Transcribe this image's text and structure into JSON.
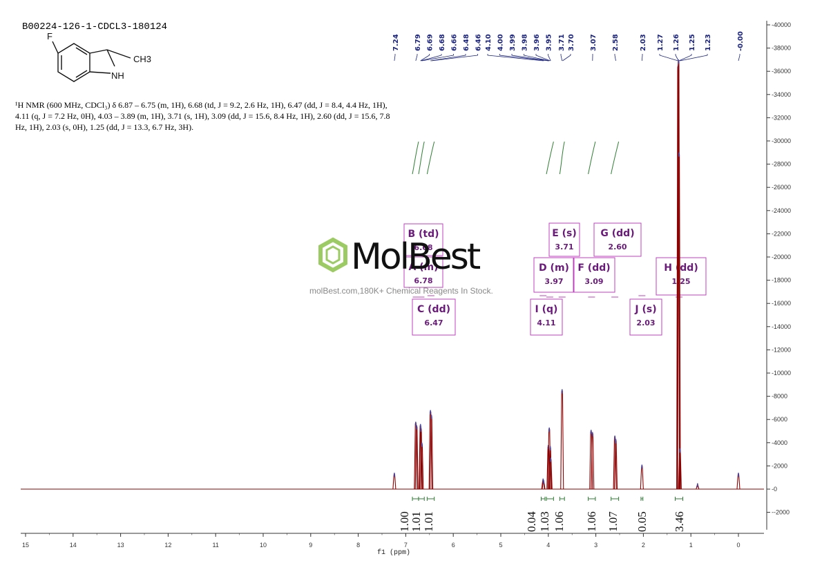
{
  "sample_id": "B00224-126-1-CDCL3-180124",
  "caption": "¹H NMR (600 MHz, CDCl₃) δ 6.87 – 6.75 (m, 1H), 6.68 (td, J = 9.2, 2.6 Hz, 1H), 6.47 (dd, J = 8.4, 4.4 Hz, 1H), 4.11 (q, J = 7.2 Hz, 0H), 4.03 – 3.89 (m, 1H), 3.71 (s, 1H), 3.09 (dd, J = 15.6, 8.4 Hz, 1H), 2.60 (dd, J = 15.6, 7.8 Hz, 1H), 2.03 (s, 0H), 1.25 (dd, J = 13.3, 6.7 Hz, 3H).",
  "molecule": {
    "f_label": "F",
    "nh_label": "NH",
    "ch3_label": "CH3"
  },
  "watermark": {
    "name": "MolBest",
    "url": "molBest.com,180K+ Chemical Reagents In Stock."
  },
  "colors": {
    "spectrum": "#8b0000",
    "integral": "#2e7d32",
    "multiplet": "#c040c0",
    "shift_labels": "#1a237e"
  },
  "chart_data": {
    "type": "line",
    "xlabel": "f1 (ppm)",
    "xlim": [
      15.2,
      -0.5
    ],
    "x_reversed": true,
    "x_ticks": [
      15,
      14,
      13,
      12,
      11,
      10,
      9,
      8,
      7,
      6,
      5,
      4,
      3,
      2,
      1,
      0
    ],
    "ylim": [
      -3500,
      40500
    ],
    "y_axis_side": "right",
    "y_ticks": [
      -2000,
      0,
      2000,
      4000,
      6000,
      8000,
      10000,
      12000,
      14000,
      16000,
      18000,
      20000,
      22000,
      24000,
      26000,
      28000,
      30000,
      32000,
      34000,
      36000,
      38000,
      40000
    ],
    "peaks": [
      {
        "ppm": 7.24,
        "intensity": 1400
      },
      {
        "ppm": 6.79,
        "intensity": 5800
      },
      {
        "ppm": 6.77,
        "intensity": 5500
      },
      {
        "ppm": 6.69,
        "intensity": 5600
      },
      {
        "ppm": 6.68,
        "intensity": 5300
      },
      {
        "ppm": 6.66,
        "intensity": 4000
      },
      {
        "ppm": 6.48,
        "intensity": 6800
      },
      {
        "ppm": 6.46,
        "intensity": 6400
      },
      {
        "ppm": 4.11,
        "intensity": 900
      },
      {
        "ppm": 4.1,
        "intensity": 800
      },
      {
        "ppm": 4.0,
        "intensity": 3800
      },
      {
        "ppm": 3.98,
        "intensity": 5300
      },
      {
        "ppm": 3.96,
        "intensity": 3700
      },
      {
        "ppm": 3.95,
        "intensity": 2700
      },
      {
        "ppm": 3.71,
        "intensity": 8600
      },
      {
        "ppm": 3.1,
        "intensity": 5100
      },
      {
        "ppm": 3.07,
        "intensity": 4900
      },
      {
        "ppm": 2.6,
        "intensity": 4600
      },
      {
        "ppm": 2.58,
        "intensity": 4300
      },
      {
        "ppm": 2.03,
        "intensity": 2100
      },
      {
        "ppm": 1.27,
        "intensity": 36500
      },
      {
        "ppm": 1.26,
        "intensity": 37000
      },
      {
        "ppm": 1.25,
        "intensity": 29000
      },
      {
        "ppm": 1.23,
        "intensity": 3500
      },
      {
        "ppm": 0.86,
        "intensity": 500
      },
      {
        "ppm": 0.0,
        "intensity": 1400
      }
    ],
    "peak_labels": [
      "7.24",
      "6.79",
      "6.69",
      "6.68",
      "6.66",
      "6.48",
      "6.46",
      "4.10",
      "4.00",
      "3.99",
      "3.98",
      "3.96",
      "3.95",
      "3.71",
      "3.70",
      "3.07",
      "2.58",
      "2.03",
      "1.27",
      "1.26",
      "1.25",
      "1.23",
      "-0.00"
    ],
    "peak_label_ppm": [
      7.24,
      6.79,
      6.69,
      6.68,
      6.66,
      6.48,
      6.46,
      4.1,
      4.0,
      3.99,
      3.98,
      3.96,
      3.95,
      3.71,
      3.7,
      3.07,
      2.58,
      2.03,
      1.27,
      1.26,
      1.25,
      1.23,
      0.0
    ],
    "integrals": [
      {
        "from": 6.86,
        "to": 6.73,
        "value": "1.00"
      },
      {
        "from": 6.73,
        "to": 6.61,
        "value": "1.01"
      },
      {
        "from": 6.55,
        "to": 6.4,
        "value": "1.01"
      },
      {
        "from": 4.15,
        "to": 4.07,
        "value": "0.04"
      },
      {
        "from": 4.04,
        "to": 3.89,
        "value": "1.03"
      },
      {
        "from": 3.76,
        "to": 3.66,
        "value": "1.06"
      },
      {
        "from": 3.16,
        "to": 3.01,
        "value": "1.06"
      },
      {
        "from": 2.68,
        "to": 2.52,
        "value": "1.07"
      },
      {
        "from": 2.05,
        "to": 2.01,
        "value": "0.05"
      },
      {
        "from": 1.33,
        "to": 1.17,
        "value": "3.46"
      }
    ],
    "multiplets": [
      {
        "name": "B (td)",
        "shift": "6.68",
        "ppm": 6.68
      },
      {
        "name": "A (m)",
        "shift": "6.78",
        "ppm": 6.78
      },
      {
        "name": "C (dd)",
        "shift": "6.47",
        "ppm": 6.47
      },
      {
        "name": "E (s)",
        "shift": "3.71",
        "ppm": 3.71
      },
      {
        "name": "D (m)",
        "shift": "3.97",
        "ppm": 3.97
      },
      {
        "name": "F (dd)",
        "shift": "3.09",
        "ppm": 3.09
      },
      {
        "name": "I (q)",
        "shift": "4.11",
        "ppm": 4.11
      },
      {
        "name": "G (dd)",
        "shift": "2.60",
        "ppm": 2.6
      },
      {
        "name": "J (s)",
        "shift": "2.03",
        "ppm": 2.03
      },
      {
        "name": "H (dd)",
        "shift": "1.25",
        "ppm": 1.25
      }
    ]
  }
}
